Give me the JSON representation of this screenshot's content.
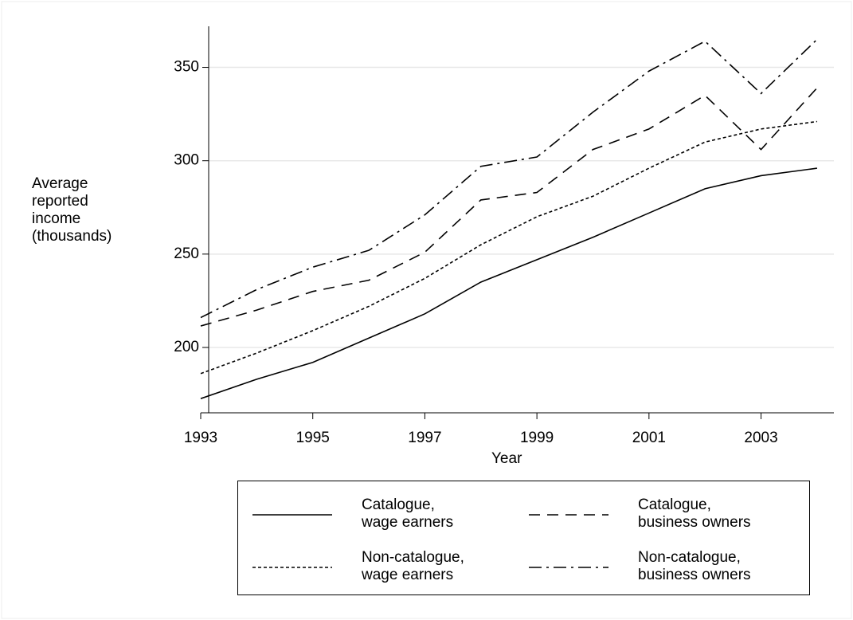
{
  "chart_data": {
    "type": "line",
    "y_label": "Average\nreported\nincome\n(thousands)",
    "x_label": "Year",
    "x": [
      1993,
      1994,
      1995,
      1996,
      1997,
      1998,
      1999,
      2000,
      2001,
      2002,
      2003,
      2004
    ],
    "series": [
      {
        "name": "Catalogue,\nwage earners",
        "color": "#000000",
        "style": "solid",
        "values": [
          172.6,
          183,
          192,
          205,
          218,
          235,
          247,
          259,
          272,
          285,
          292,
          296
        ]
      },
      {
        "name": "Catalogue,\nbusiness owners",
        "color": "#000000",
        "style": "dashed",
        "values": [
          211.5,
          220,
          230,
          236,
          251,
          279,
          283,
          306,
          317,
          335,
          306,
          339
        ]
      },
      {
        "name": "Non-catalogue,\nwage earners",
        "color": "#000000",
        "style": "dotted",
        "values": [
          186,
          197,
          209,
          222,
          237,
          255,
          270,
          281,
          296,
          310,
          317,
          321
        ]
      },
      {
        "name": "Non-catalogue,\nbusiness owners",
        "color": "#000000",
        "style": "dashdot",
        "values": [
          216,
          231,
          243,
          252,
          271,
          297,
          302,
          326,
          348,
          364,
          336,
          365
        ]
      }
    ],
    "xlim": [
      1993,
      2004.3
    ],
    "ylim": [
      165,
      372
    ],
    "xticks": [
      1993,
      1995,
      1997,
      1999,
      2001,
      2003
    ],
    "yticks": [
      200,
      250,
      300,
      350
    ],
    "grid": true,
    "legend": "bottom"
  }
}
